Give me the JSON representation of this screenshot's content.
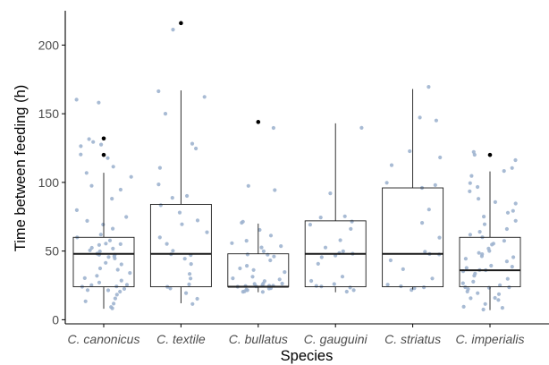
{
  "chart_data": {
    "type": "boxplot",
    "xlabel": "Species",
    "ylabel": "Time between feeding (h)",
    "ylim": [
      -3,
      225
    ],
    "yticks": [
      0,
      50,
      100,
      150,
      200
    ],
    "categories": [
      "C. canonicus",
      "C. textile",
      "C. bullatus",
      "C. gauguini",
      "C. striatus",
      "C. imperialis"
    ],
    "grid": false,
    "legend": "none",
    "colors": {
      "points": "#9fb4cf",
      "box_stroke": "#1a1a1a",
      "outlier": "#000000",
      "axis": "#000000",
      "tick_text": "#4d4d4d"
    },
    "boxes": [
      {
        "category": "C. canonicus",
        "lower_whisker": 8,
        "q1": 24,
        "median": 48,
        "q3": 60,
        "upper_whisker": 107,
        "outliers": [
          120,
          132
        ],
        "points": [
          8,
          10,
          12,
          14,
          16,
          18,
          20,
          21,
          22,
          23,
          24,
          24,
          25,
          26,
          27,
          28,
          30,
          32,
          34,
          36,
          38,
          40,
          42,
          44,
          45,
          46,
          47,
          48,
          48,
          49,
          50,
          51,
          52,
          54,
          55,
          56,
          58,
          60,
          62,
          66,
          70,
          72,
          75,
          80,
          88,
          95,
          98,
          104,
          107,
          112,
          118,
          121,
          126,
          128,
          130,
          132,
          158,
          160
        ]
      },
      {
        "category": "C. textile",
        "lower_whisker": 12,
        "q1": 24,
        "median": 48,
        "q3": 84,
        "upper_whisker": 167,
        "outliers": [
          216
        ],
        "points": [
          12,
          16,
          20,
          22,
          24,
          26,
          30,
          34,
          40,
          44,
          47,
          48,
          50,
          55,
          60,
          64,
          70,
          72,
          78,
          84,
          88,
          90,
          98,
          110,
          125,
          128,
          150,
          162,
          167,
          212
        ]
      },
      {
        "category": "C. bullatus",
        "lower_whisker": 20,
        "q1": 24,
        "median": 24,
        "q3": 48,
        "upper_whisker": 70,
        "outliers": [
          144
        ],
        "points": [
          20,
          21,
          21,
          22,
          22,
          23,
          23,
          24,
          24,
          24,
          24,
          25,
          25,
          26,
          26,
          27,
          28,
          29,
          30,
          32,
          34,
          36,
          38,
          40,
          44,
          46,
          48,
          48,
          50,
          52,
          54,
          56,
          58,
          62,
          66,
          70,
          72,
          94,
          98,
          140
        ]
      },
      {
        "category": "C. gauguini",
        "lower_whisker": 20,
        "q1": 24,
        "median": 48,
        "q3": 72,
        "upper_whisker": 143,
        "outliers": [],
        "points": [
          20,
          22,
          23,
          24,
          24,
          26,
          28,
          32,
          40,
          46,
          47,
          48,
          48,
          50,
          52,
          58,
          66,
          70,
          72,
          74,
          76,
          92,
          140
        ]
      },
      {
        "category": "C. striatus",
        "lower_whisker": 22,
        "q1": 24,
        "median": 48,
        "q3": 96,
        "upper_whisker": 168,
        "outliers": [],
        "points": [
          22,
          23,
          24,
          24,
          25,
          30,
          36,
          44,
          48,
          48,
          50,
          60,
          70,
          80,
          96,
          98,
          100,
          112,
          118,
          122,
          145,
          148,
          170
        ]
      },
      {
        "category": "C. imperialis",
        "lower_whisker": 7,
        "q1": 24,
        "median": 36,
        "q3": 60,
        "upper_whisker": 108,
        "outliers": [
          120
        ],
        "points": [
          7,
          8,
          10,
          12,
          14,
          15,
          16,
          18,
          19,
          20,
          22,
          23,
          24,
          24,
          25,
          26,
          28,
          30,
          32,
          34,
          35,
          36,
          36,
          37,
          38,
          40,
          42,
          44,
          46,
          47,
          48,
          48,
          50,
          52,
          54,
          56,
          58,
          60,
          62,
          64,
          66,
          70,
          72,
          75,
          78,
          80,
          84,
          86,
          88,
          94,
          96,
          100,
          104,
          108,
          110,
          116,
          120,
          122
        ]
      }
    ]
  }
}
